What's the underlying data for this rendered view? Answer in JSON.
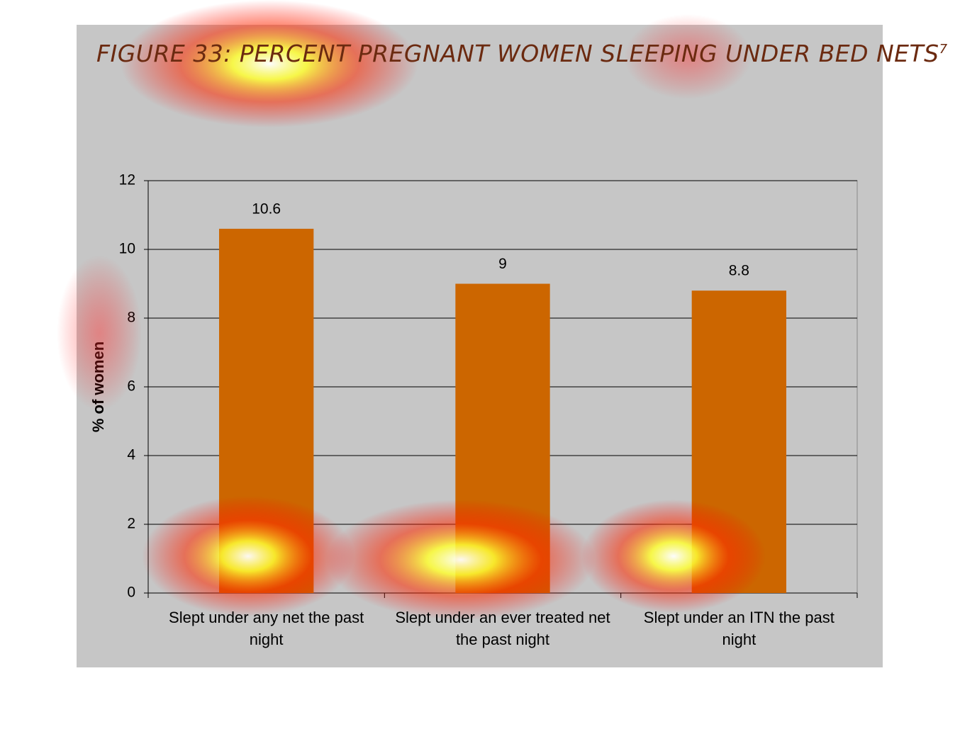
{
  "chart_data": {
    "type": "bar",
    "title": "FIGURE 33: PERCENT PREGNANT WOMEN SLEEPING UNDER BED NETS",
    "title_note": "7",
    "y_label": "% of women",
    "categories": [
      "Slept under any net the past night",
      "Slept under an ever treated net the past night",
      "Slept under an ITN the past night"
    ],
    "values": [
      10.6,
      9,
      8.8
    ],
    "color": "#cc6600",
    "ylim": [
      0,
      12
    ],
    "yticks": [
      0,
      2,
      4,
      6,
      8,
      10,
      12
    ],
    "grid": true
  }
}
